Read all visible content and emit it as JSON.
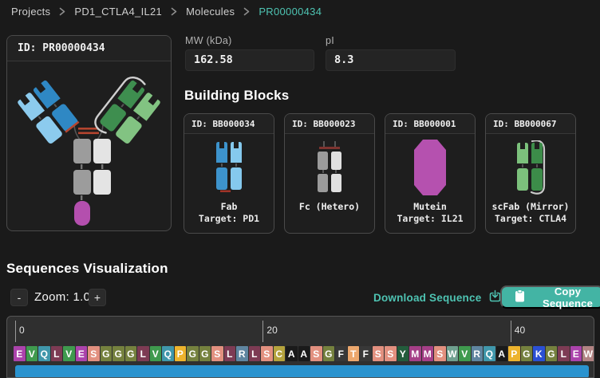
{
  "colors": {
    "accent_teal": "#4ec3b2",
    "button_teal": "#43b4a4",
    "page_bg": "#1a1a1a"
  },
  "breadcrumb": {
    "items": [
      "Projects",
      "PD1_CTLA4_IL21",
      "Molecules",
      "PR00000434"
    ],
    "separator_icon": "chevron-right"
  },
  "molecule_panel": {
    "id_label": "ID: PR00000434"
  },
  "properties": {
    "mw_label": "MW (kDa)",
    "mw_value": "162.58",
    "pi_label": "pI",
    "pi_value": "8.3"
  },
  "building_blocks": {
    "title": "Building Blocks",
    "cards": [
      {
        "id": "ID: BB000034",
        "name": "Fab",
        "target": "Target: PD1",
        "icon": "fab-blue-icon"
      },
      {
        "id": "ID: BB000023",
        "name": "Fc (Hetero)",
        "target": "",
        "icon": "fc-gray-icon"
      },
      {
        "id": "ID: BB000001",
        "name": "Mutein",
        "target": "Target: IL21",
        "icon": "mutein-magenta-icon"
      },
      {
        "id": "ID: BB000067",
        "name": "scFab (Mirror)",
        "target": "Target: CTLA4",
        "icon": "scfab-green-icon"
      }
    ]
  },
  "sequences": {
    "title": "Sequences Visualization",
    "zoom_minus": "-",
    "zoom_label": "Zoom: 1.00",
    "zoom_plus": "+",
    "download_label": "Download Sequence",
    "copy_label": "Copy Sequence",
    "ruler": [
      {
        "label": "0",
        "index": 0
      },
      {
        "label": "20",
        "index": 20
      },
      {
        "label": "40",
        "index": 40
      }
    ],
    "track_color": "#2a93cf",
    "residues": [
      {
        "a": "E",
        "c": "#ab43ab"
      },
      {
        "a": "V",
        "c": "#3f9a4e"
      },
      {
        "a": "Q",
        "c": "#4097ab"
      },
      {
        "a": "L",
        "c": "#7d3b54"
      },
      {
        "a": "V",
        "c": "#3f9a4e"
      },
      {
        "a": "E",
        "c": "#ab43ab"
      },
      {
        "a": "S",
        "c": "#e2907f"
      },
      {
        "a": "G",
        "c": "#75813e"
      },
      {
        "a": "G",
        "c": "#75813e"
      },
      {
        "a": "G",
        "c": "#75813e"
      },
      {
        "a": "L",
        "c": "#7d3b54"
      },
      {
        "a": "V",
        "c": "#3f9a4e"
      },
      {
        "a": "Q",
        "c": "#4097ab"
      },
      {
        "a": "P",
        "c": "#edb32d"
      },
      {
        "a": "G",
        "c": "#75813e"
      },
      {
        "a": "G",
        "c": "#75813e"
      },
      {
        "a": "S",
        "c": "#e2907f"
      },
      {
        "a": "L",
        "c": "#7d3b54"
      },
      {
        "a": "R",
        "c": "#5f85a0"
      },
      {
        "a": "L",
        "c": "#7d3b54"
      },
      {
        "a": "S",
        "c": "#e2907f"
      },
      {
        "a": "C",
        "c": "#b5a33d"
      },
      {
        "a": "A",
        "c": "#1a1a1a"
      },
      {
        "a": "A",
        "c": "#1a1a1a"
      },
      {
        "a": "S",
        "c": "#e2907f"
      },
      {
        "a": "G",
        "c": "#75813e"
      },
      {
        "a": "F",
        "c": "#383838"
      },
      {
        "a": "T",
        "c": "#eca76d"
      },
      {
        "a": "F",
        "c": "#383838"
      },
      {
        "a": "S",
        "c": "#e2907f"
      },
      {
        "a": "S",
        "c": "#e2907f"
      },
      {
        "a": "Y",
        "c": "#235c3c"
      },
      {
        "a": "M",
        "c": "#a53f87"
      },
      {
        "a": "M",
        "c": "#a53f87"
      },
      {
        "a": "S",
        "c": "#e2907f"
      },
      {
        "a": "W",
        "c": "#6fa08f"
      },
      {
        "a": "V",
        "c": "#3f9a4e"
      },
      {
        "a": "R",
        "c": "#5f85a0"
      },
      {
        "a": "Q",
        "c": "#4097ab"
      },
      {
        "a": "A",
        "c": "#1a1a1a"
      },
      {
        "a": "P",
        "c": "#edb32d"
      },
      {
        "a": "G",
        "c": "#75813e"
      },
      {
        "a": "K",
        "c": "#2b50d4"
      },
      {
        "a": "G",
        "c": "#75813e"
      },
      {
        "a": "L",
        "c": "#7d3b54"
      },
      {
        "a": "E",
        "c": "#ab43ab"
      },
      {
        "a": "W",
        "c": "#b18383"
      }
    ]
  }
}
